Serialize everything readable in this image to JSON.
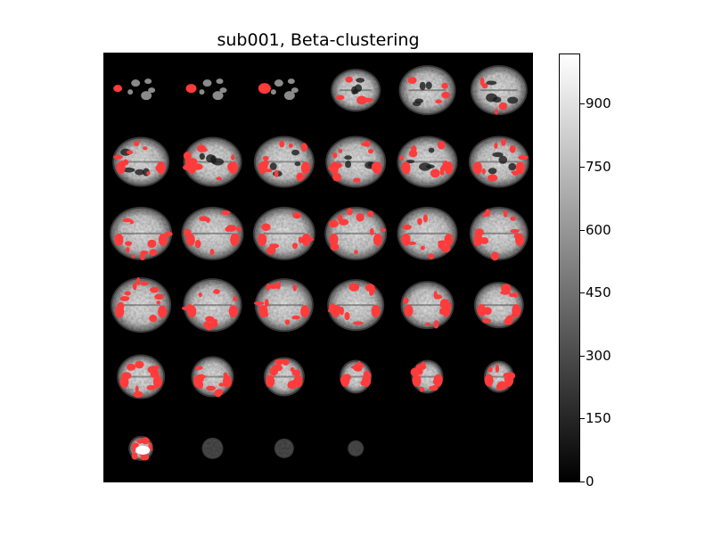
{
  "chart_data": {
    "type": "heatmap",
    "title": "sub001, Beta-clustering",
    "colorbar": {
      "colormap": "gray",
      "range": [
        0,
        1020
      ],
      "ticks": [
        0,
        150,
        300,
        450,
        600,
        750,
        900
      ],
      "tick_labels": [
        "0",
        "150",
        "300",
        "450",
        "600",
        "750",
        "900"
      ]
    },
    "mosaic": {
      "rows": 6,
      "cols": 6,
      "slices_shown": 34,
      "overlay_color": "#ff3b3b",
      "background_color": "#000000"
    },
    "axes": {
      "xticks": "off",
      "yticks": "off"
    }
  }
}
